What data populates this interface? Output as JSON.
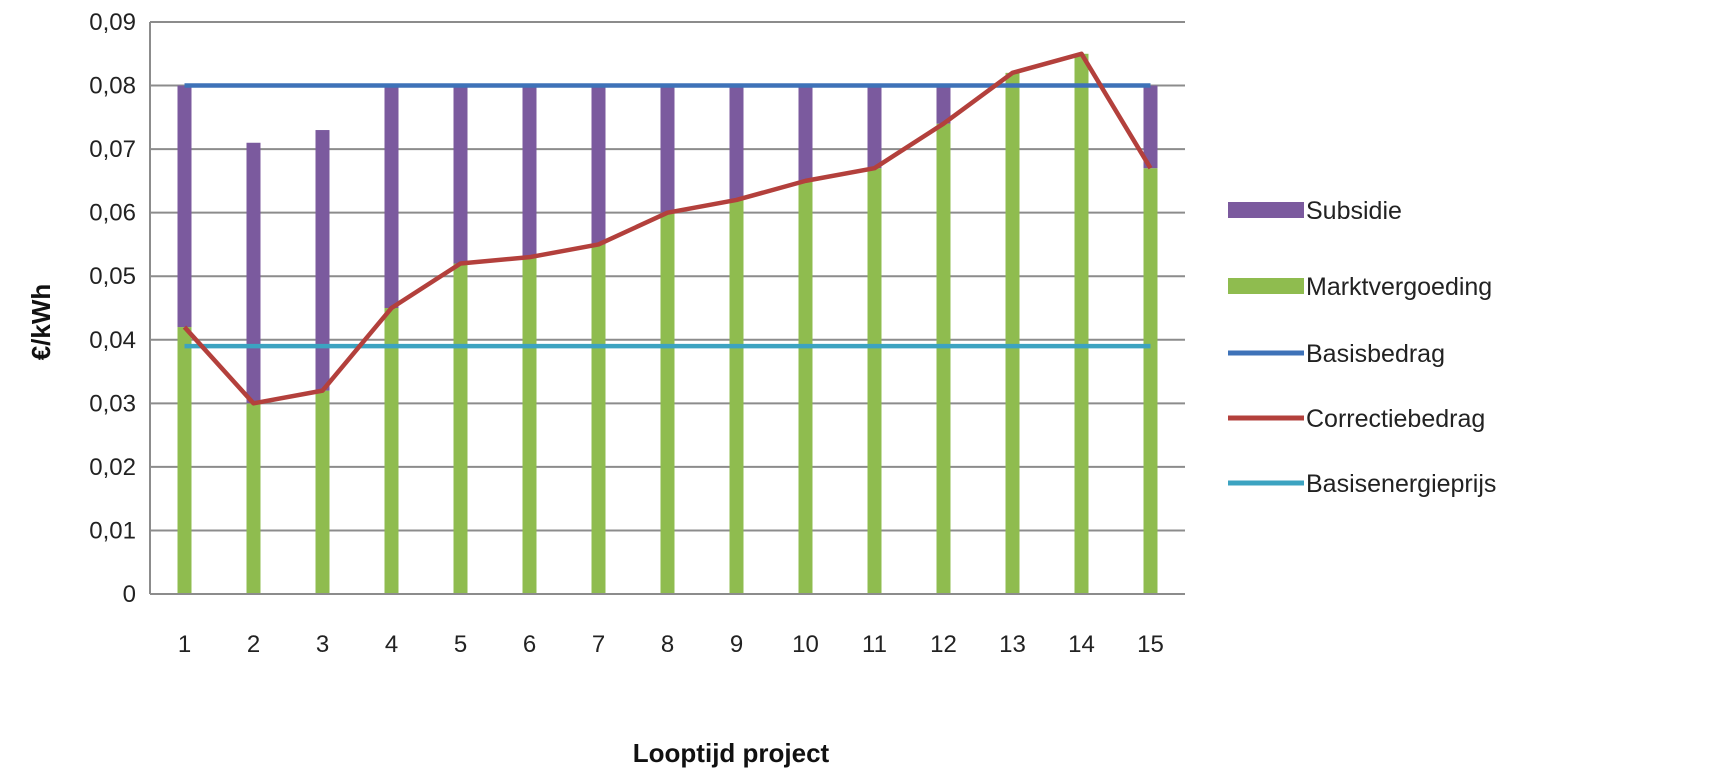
{
  "chart_data": {
    "type": "bar",
    "xlabel": "Looptijd project",
    "ylabel": "€/kWh",
    "ylim": [
      0,
      0.09
    ],
    "y_ticks": [
      {
        "value": 0,
        "label": "0"
      },
      {
        "value": 0.01,
        "label": "0,01"
      },
      {
        "value": 0.02,
        "label": "0,02"
      },
      {
        "value": 0.03,
        "label": "0,03"
      },
      {
        "value": 0.04,
        "label": "0,04"
      },
      {
        "value": 0.05,
        "label": "0,05"
      },
      {
        "value": 0.06,
        "label": "0,06"
      },
      {
        "value": 0.07,
        "label": "0,07"
      },
      {
        "value": 0.08,
        "label": "0,08"
      },
      {
        "value": 0.09,
        "label": "0,09"
      }
    ],
    "categories": [
      "1",
      "2",
      "3",
      "4",
      "5",
      "6",
      "7",
      "8",
      "9",
      "10",
      "11",
      "12",
      "13",
      "14",
      "15"
    ],
    "grid": true,
    "legend_position": "right",
    "series": [
      {
        "name": "Subsidie",
        "kind": "stacked-bar",
        "color": "#7b5a9e",
        "values": [
          0.038,
          0.041,
          0.041,
          0.035,
          0.028,
          0.027,
          0.025,
          0.02,
          0.018,
          0.015,
          0.013,
          0.006,
          0,
          0,
          0.013
        ]
      },
      {
        "name": "Marktvergoeding",
        "kind": "stacked-bar",
        "color": "#8fbc4f",
        "values": [
          0.042,
          0.03,
          0.032,
          0.045,
          0.052,
          0.053,
          0.055,
          0.06,
          0.062,
          0.065,
          0.067,
          0.074,
          0.082,
          0.085,
          0.067
        ]
      },
      {
        "name": "Basisbedrag",
        "kind": "line",
        "color": "#3e72b8",
        "values": [
          0.08,
          0.08,
          0.08,
          0.08,
          0.08,
          0.08,
          0.08,
          0.08,
          0.08,
          0.08,
          0.08,
          0.08,
          0.08,
          0.08,
          0.08
        ]
      },
      {
        "name": "Correctiebedrag",
        "kind": "line",
        "color": "#b3403c",
        "values": [
          0.042,
          0.03,
          0.032,
          0.045,
          0.052,
          0.053,
          0.055,
          0.06,
          0.062,
          0.065,
          0.067,
          0.074,
          0.082,
          0.085,
          0.067
        ]
      },
      {
        "name": "Basisenergieprijs",
        "kind": "line",
        "color": "#3ca3c1",
        "values": [
          0.039,
          0.039,
          0.039,
          0.039,
          0.039,
          0.039,
          0.039,
          0.039,
          0.039,
          0.039,
          0.039,
          0.039,
          0.039,
          0.039,
          0.039
        ]
      }
    ]
  }
}
